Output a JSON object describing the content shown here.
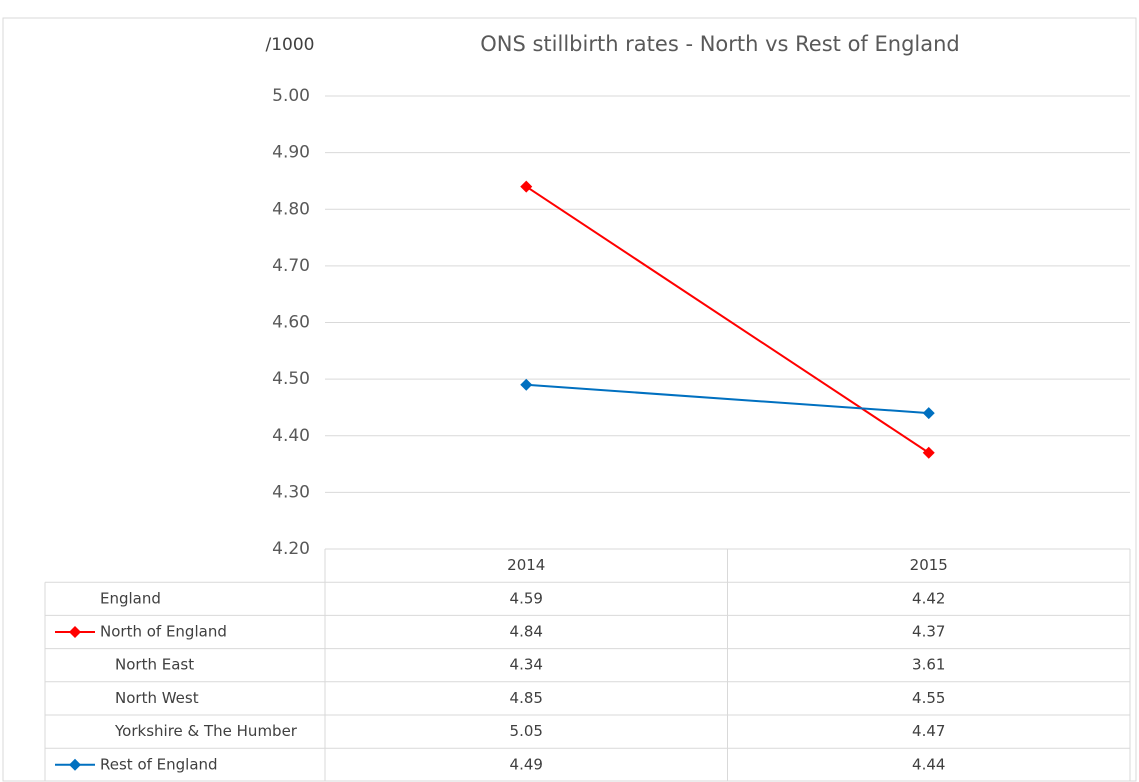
{
  "chart_data": {
    "type": "line",
    "title": "ONS stillbirth rates - North vs Rest of England",
    "y_label": "/1000",
    "categories": [
      "2014",
      "2015"
    ],
    "series": [
      {
        "name": "England",
        "values": [
          4.59,
          4.42
        ]
      },
      {
        "name": "North of England",
        "color": "#ff0000",
        "values": [
          4.84,
          4.37
        ]
      },
      {
        "name": "North East",
        "values": [
          4.34,
          3.61
        ]
      },
      {
        "name": "North West",
        "values": [
          4.85,
          4.55
        ]
      },
      {
        "name": "Yorkshire & The Humber",
        "values": [
          5.05,
          4.47
        ]
      },
      {
        "name": "Rest of England",
        "color": "#0070c0",
        "values": [
          4.49,
          4.44
        ]
      }
    ],
    "ylim": [
      4.2,
      5.0
    ],
    "yticks": [
      {
        "value": 4.2,
        "label": "4.20"
      },
      {
        "value": 4.3,
        "label": "4.30"
      },
      {
        "value": 4.4,
        "label": "4.40"
      },
      {
        "value": 4.5,
        "label": "4.50"
      },
      {
        "value": 4.6,
        "label": "4.60"
      },
      {
        "value": 4.7,
        "label": "4.70"
      },
      {
        "value": 4.8,
        "label": "4.80"
      },
      {
        "value": 4.9,
        "label": "4.90"
      },
      {
        "value": 5.0,
        "label": "5.00"
      }
    ],
    "grid": true,
    "data_table": true
  }
}
